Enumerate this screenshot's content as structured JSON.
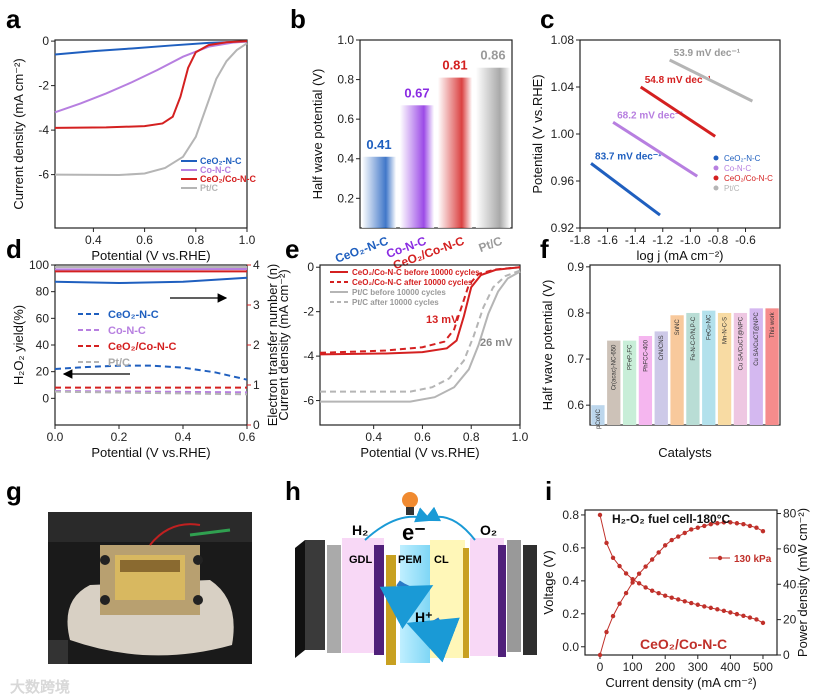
{
  "panels": {
    "a": "a",
    "b": "b",
    "c": "c",
    "d": "d",
    "e": "e",
    "f": "f",
    "g": "g",
    "h": "h",
    "i": "i"
  },
  "colors": {
    "ceo2_nc": "#1f5fbf",
    "co_nc": "#b77fe0",
    "ceo2_co_nc": "#d42020",
    "ptc": "#b5b5b5"
  },
  "watermark": "大数跨境",
  "chart_data": [
    {
      "id": "a",
      "type": "line",
      "xlabel": "Potential (V vs.RHE)",
      "ylabel": "Current density (mA cm⁻²)",
      "xlim": [
        0.25,
        1.0
      ],
      "ylim": [
        -8.4,
        0.05
      ],
      "xticks": [
        0.4,
        0.6,
        0.8,
        1.0
      ],
      "xtick_labels": [
        "0.4",
        "0.6",
        "0.8",
        "1.0"
      ],
      "yticks": [
        0,
        -2,
        -4,
        -6
      ],
      "ytick_labels": [
        "0",
        "-2",
        "-4",
        "-6"
      ],
      "legend_position": "bottom-right",
      "series": [
        {
          "name": "CeO₂-N-C",
          "color": "#1f5fbf",
          "points": [
            [
              0.25,
              -0.6
            ],
            [
              0.4,
              -0.45
            ],
            [
              0.55,
              -0.33
            ],
            [
              0.7,
              -0.2
            ],
            [
              0.85,
              -0.08
            ],
            [
              1.0,
              -0.02
            ]
          ]
        },
        {
          "name": "Co-N-C",
          "color": "#b77fe0",
          "points": [
            [
              0.25,
              -3.2
            ],
            [
              0.35,
              -2.8
            ],
            [
              0.45,
              -2.35
            ],
            [
              0.55,
              -1.85
            ],
            [
              0.65,
              -1.3
            ],
            [
              0.75,
              -0.7
            ],
            [
              0.85,
              -0.25
            ],
            [
              0.95,
              -0.06
            ],
            [
              1.0,
              -0.02
            ]
          ]
        },
        {
          "name": "CeO₂/Co-N-C",
          "color": "#d42020",
          "points": [
            [
              0.25,
              -3.9
            ],
            [
              0.45,
              -3.88
            ],
            [
              0.6,
              -3.82
            ],
            [
              0.67,
              -3.7
            ],
            [
              0.71,
              -3.4
            ],
            [
              0.74,
              -2.5
            ],
            [
              0.77,
              -1.2
            ],
            [
              0.8,
              -0.5
            ],
            [
              0.85,
              -0.18
            ],
            [
              0.92,
              -0.05
            ],
            [
              1.0,
              0
            ]
          ]
        },
        {
          "name": "Pt/C",
          "color": "#b5b5b5",
          "points": [
            [
              0.25,
              -6.0
            ],
            [
              0.5,
              -6.02
            ],
            [
              0.6,
              -5.95
            ],
            [
              0.68,
              -5.7
            ],
            [
              0.75,
              -5.2
            ],
            [
              0.8,
              -4.3
            ],
            [
              0.84,
              -3.0
            ],
            [
              0.88,
              -1.7
            ],
            [
              0.92,
              -0.9
            ],
            [
              0.96,
              -0.4
            ],
            [
              1.0,
              -0.1
            ]
          ]
        }
      ]
    },
    {
      "id": "b",
      "type": "bar",
      "ylabel": "Half wave potential (V)",
      "ylim": [
        0.05,
        1.0
      ],
      "yticks": [
        0.2,
        0.4,
        0.6,
        0.8,
        1.0
      ],
      "ytick_labels": [
        "0.2",
        "0.4",
        "0.6",
        "0.8",
        "1.0"
      ],
      "categories": [
        "CeO₂-N-C",
        "Co-N-C",
        "CeO₂/Co-N-C",
        "Pt/C"
      ],
      "values": [
        0.41,
        0.67,
        0.81,
        0.86
      ],
      "value_labels": [
        "0.41",
        "0.67",
        "0.81",
        "0.86"
      ],
      "colors": [
        "#1f5fbf",
        "#8a2be2",
        "#d42020",
        "#9a9a9a"
      ]
    },
    {
      "id": "c",
      "type": "line",
      "xlabel": "log j  (mA cm⁻²)",
      "ylabel": "Potential (V vs.RHE)",
      "xlim": [
        -1.8,
        -0.35
      ],
      "ylim": [
        0.92,
        1.08
      ],
      "xticks": [
        -1.8,
        -1.6,
        -1.4,
        -1.2,
        -1.0,
        -0.8,
        -0.6
      ],
      "xtick_labels": [
        "-1.8",
        "-1.6",
        "-1.4",
        "-1.2",
        "-1.0",
        "-0.8",
        "-0.6"
      ],
      "yticks": [
        0.92,
        0.96,
        1.0,
        1.04,
        1.08
      ],
      "ytick_labels": [
        "0.92",
        "0.96",
        "1.00",
        "1.04",
        "1.08"
      ],
      "legend_position": "bottom-right",
      "series": [
        {
          "name": "CeO₂-N-C",
          "color": "#1f5fbf",
          "slope_label": "83.7 mV dec⁻¹",
          "points": [
            [
              -1.72,
              0.975
            ],
            [
              -1.22,
              0.931
            ]
          ]
        },
        {
          "name": "Co-N-C",
          "color": "#b77fe0",
          "slope_label": "68.2 mV dec⁻¹",
          "points": [
            [
              -1.56,
              1.01
            ],
            [
              -0.95,
              0.964
            ]
          ]
        },
        {
          "name": "CeO₂/Co-N-C",
          "color": "#d42020",
          "slope_label": "54.8 mV dec⁻¹",
          "points": [
            [
              -1.36,
              1.04
            ],
            [
              -0.82,
              0.998
            ]
          ]
        },
        {
          "name": "Pt/C",
          "color": "#b5b5b5",
          "slope_label": "53.9 mV dec⁻¹",
          "points": [
            [
              -1.15,
              1.063
            ],
            [
              -0.55,
              1.028
            ]
          ]
        }
      ]
    },
    {
      "id": "d",
      "type": "line",
      "xlabel": "Potential (V vs.RHE)",
      "ylabel": "H₂O₂ yield(%)",
      "ylabel_right": "Electron transfer number (n)",
      "xlim": [
        0,
        0.6
      ],
      "ylim": [
        -20,
        100
      ],
      "ylim_right": [
        0,
        4
      ],
      "xticks": [
        0,
        0.2,
        0.4,
        0.6
      ],
      "xtick_labels": [
        "0.0",
        "0.2",
        "0.4",
        "0.6"
      ],
      "yticks": [
        0,
        20,
        40,
        60,
        80,
        100
      ],
      "ytick_labels": [
        "0",
        "20",
        "40",
        "60",
        "80",
        "100"
      ],
      "yticks_right": [
        0,
        1,
        2,
        3,
        4
      ],
      "ytick_labels_right": [
        "0",
        "1",
        "2",
        "3",
        "4"
      ],
      "legend_position": "center",
      "series": [
        {
          "name": "CeO₂-N-C",
          "color": "#1f5fbf",
          "axis": "left",
          "dashed": true,
          "points": [
            [
              0,
              22
            ],
            [
              0.1,
              23.5
            ],
            [
              0.2,
              24.5
            ],
            [
              0.3,
              24.5
            ],
            [
              0.4,
              23
            ],
            [
              0.5,
              19.5
            ],
            [
              0.6,
              14
            ]
          ]
        },
        {
          "name": "Co-N-C",
          "color": "#b77fe0",
          "axis": "left",
          "dashed": true,
          "points": [
            [
              0,
              5.5
            ],
            [
              0.3,
              5
            ],
            [
              0.6,
              4.5
            ]
          ]
        },
        {
          "name": "CeO₂/Co-N-C",
          "color": "#d42020",
          "axis": "left",
          "dashed": true,
          "points": [
            [
              0,
              8
            ],
            [
              0.3,
              8
            ],
            [
              0.6,
              8
            ]
          ]
        },
        {
          "name": "Pt/C",
          "color": "#b5b5b5",
          "axis": "left",
          "dashed": true,
          "points": [
            [
              0,
              5
            ],
            [
              0.3,
              4
            ],
            [
              0.6,
              3
            ]
          ]
        },
        {
          "name": "CeO₂-N-C n",
          "color": "#1f5fbf",
          "axis": "right",
          "dashed": false,
          "points": [
            [
              0,
              3.58
            ],
            [
              0.2,
              3.55
            ],
            [
              0.4,
              3.58
            ],
            [
              0.6,
              3.68
            ]
          ]
        },
        {
          "name": "Co-N-C n",
          "color": "#b77fe0",
          "axis": "right",
          "dashed": false,
          "points": [
            [
              0,
              3.89
            ],
            [
              0.6,
              3.9
            ]
          ]
        },
        {
          "name": "CeO₂/Co-N-C n",
          "color": "#d42020",
          "axis": "right",
          "dashed": false,
          "points": [
            [
              0,
              3.84
            ],
            [
              0.6,
              3.84
            ]
          ]
        },
        {
          "name": "Pt/C n",
          "color": "#b5b5b5",
          "axis": "right",
          "dashed": false,
          "points": [
            [
              0,
              3.95
            ],
            [
              0.6,
              3.95
            ]
          ]
        }
      ]
    },
    {
      "id": "e",
      "type": "line",
      "xlabel": "Potential (V vs.RHE)",
      "ylabel": "Current density (mA cm⁻²)",
      "xlim": [
        0.18,
        1.0
      ],
      "ylim": [
        -7.1,
        0.1
      ],
      "xticks": [
        0.4,
        0.6,
        0.8,
        1.0
      ],
      "xtick_labels": [
        "0.4",
        "0.6",
        "0.8",
        "1.0"
      ],
      "yticks": [
        0,
        -2,
        -4,
        -6
      ],
      "ytick_labels": [
        "0",
        "-2",
        "-4",
        "-6"
      ],
      "annotations": [
        "13 mV",
        "26 mV"
      ],
      "legend_position": "top-left",
      "series": [
        {
          "name": "CeO₂/Co-N-C before 10000 cycles",
          "color": "#d42020",
          "dashed": false,
          "points": [
            [
              0.18,
              -3.92
            ],
            [
              0.45,
              -3.88
            ],
            [
              0.6,
              -3.82
            ],
            [
              0.7,
              -3.65
            ],
            [
              0.74,
              -3.3
            ],
            [
              0.77,
              -2.2
            ],
            [
              0.8,
              -0.9
            ],
            [
              0.84,
              -0.35
            ],
            [
              0.9,
              -0.12
            ],
            [
              1.0,
              0
            ]
          ]
        },
        {
          "name": "CeO₂/Co-N-C after 10000 cycles",
          "color": "#d42020",
          "dashed": true,
          "points": [
            [
              0.18,
              -3.85
            ],
            [
              0.45,
              -3.75
            ],
            [
              0.6,
              -3.6
            ],
            [
              0.69,
              -3.35
            ],
            [
              0.73,
              -2.8
            ],
            [
              0.76,
              -1.8
            ],
            [
              0.79,
              -0.8
            ],
            [
              0.83,
              -0.3
            ],
            [
              0.9,
              -0.1
            ],
            [
              1.0,
              0
            ]
          ]
        },
        {
          "name": "Pt/C before 10000 cycles",
          "color": "#b5b5b5",
          "dashed": false,
          "points": [
            [
              0.18,
              -6.05
            ],
            [
              0.55,
              -6.05
            ],
            [
              0.65,
              -5.85
            ],
            [
              0.73,
              -5.4
            ],
            [
              0.79,
              -4.6
            ],
            [
              0.83,
              -3.5
            ],
            [
              0.87,
              -2.1
            ],
            [
              0.91,
              -1.1
            ],
            [
              0.95,
              -0.5
            ],
            [
              1.0,
              -0.2
            ]
          ]
        },
        {
          "name": "Pt/C after 10000 cycles",
          "color": "#b5b5b5",
          "dashed": true,
          "points": [
            [
              0.18,
              -5.6
            ],
            [
              0.55,
              -5.6
            ],
            [
              0.64,
              -5.4
            ],
            [
              0.71,
              -5.0
            ],
            [
              0.77,
              -4.2
            ],
            [
              0.81,
              -3.1
            ],
            [
              0.85,
              -1.8
            ],
            [
              0.89,
              -0.9
            ],
            [
              0.94,
              -0.4
            ],
            [
              1.0,
              -0.15
            ]
          ]
        }
      ]
    },
    {
      "id": "f",
      "type": "bar",
      "xlabel": "Catalysts",
      "ylabel": "Half wave potential (V)",
      "ylim": [
        0.557,
        0.904
      ],
      "yticks": [
        0.6,
        0.7,
        0.8,
        0.9
      ],
      "ytick_labels": [
        "0.6",
        "0.7",
        "0.8",
        "0.9"
      ],
      "categories": [
        "pCoNC",
        "Cr(acac)-NC-650",
        "PFeP₂FC",
        "PhFCC-400",
        "CrN/CNS",
        "SnNC",
        "Fe-N-C-P/N,P-C",
        "FeCu-NC",
        "Mn-N-C-S",
        "Cu SA/CuCT@NPC",
        "Cu SA/CuCT@NPC",
        "This work"
      ],
      "values": [
        0.6,
        0.74,
        0.74,
        0.75,
        0.76,
        0.795,
        0.8,
        0.805,
        0.8,
        0.8,
        0.81,
        0.81
      ],
      "colors": [
        "#bcd6ec",
        "#cdc2b8",
        "#c8eed8",
        "#f5b6ef",
        "#cdc9e8",
        "#f8c99c",
        "#b9ddd5",
        "#b3e1ec",
        "#f8dba3",
        "#eec7e2",
        "#d4b8f0",
        "#f58c8c"
      ]
    },
    {
      "id": "i",
      "type": "line",
      "title": "H₂-O₂ fuel cell-180°C",
      "xlabel": "Current density (mA cm⁻²)",
      "ylabel": "Voltage (V)",
      "ylabel_right": "Power density (mW cm⁻²)",
      "xlim": [
        -46,
        543
      ],
      "ylim": [
        -0.05,
        0.83
      ],
      "ylim_right": [
        0,
        82
      ],
      "xticks": [
        0,
        100,
        200,
        300,
        400,
        500
      ],
      "xtick_labels": [
        "0",
        "100",
        "200",
        "300",
        "400",
        "500"
      ],
      "yticks": [
        0,
        0.2,
        0.4,
        0.6,
        0.8
      ],
      "ytick_labels": [
        "0.0",
        "0.2",
        "0.4",
        "0.6",
        "0.8"
      ],
      "yticks_right": [
        0,
        20,
        40,
        60,
        80
      ],
      "ytick_labels_right": [
        "0",
        "20",
        "40",
        "60",
        "80"
      ],
      "legend": "130 kPa",
      "annotation": "CeO₂/Co-N-C",
      "x": [
        0,
        20,
        40,
        60,
        80,
        100,
        120,
        140,
        160,
        180,
        200,
        220,
        240,
        260,
        280,
        300,
        320,
        340,
        360,
        380,
        400,
        420,
        440,
        460,
        480,
        500
      ],
      "series": [
        {
          "name": "Voltage",
          "axis": "left",
          "color": "#c0302a",
          "values": [
            0.8,
            0.63,
            0.54,
            0.49,
            0.445,
            0.41,
            0.385,
            0.36,
            0.34,
            0.325,
            0.31,
            0.298,
            0.287,
            0.276,
            0.265,
            0.255,
            0.245,
            0.236,
            0.227,
            0.218,
            0.208,
            0.198,
            0.188,
            0.177,
            0.166,
            0.145
          ]
        },
        {
          "name": "Power density",
          "axis": "right",
          "color": "#c0302a",
          "values": [
            0,
            13,
            22,
            29,
            35,
            41,
            46,
            50,
            54,
            58,
            62,
            65,
            67,
            69,
            71,
            72,
            73,
            74,
            74.5,
            75,
            75,
            74.5,
            74,
            73,
            72,
            70
          ]
        }
      ]
    }
  ],
  "photo_g": {
    "caption": "fuel cell test fixture photo"
  },
  "diagram_h": {
    "labels": {
      "h2": "H₂",
      "o2": "O₂",
      "electron": "e⁻",
      "gdl": "GDL",
      "pem": "PEM",
      "cl": "CL",
      "proton": "H⁺"
    }
  }
}
